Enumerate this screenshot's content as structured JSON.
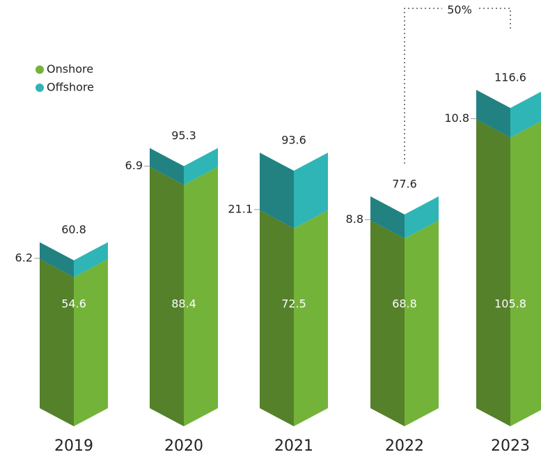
{
  "chart_data": {
    "type": "bar3d-stacked",
    "categories": [
      "2019",
      "2020",
      "2021",
      "2022",
      "2023"
    ],
    "series": [
      {
        "name": "Onshore",
        "color": "#74b33a",
        "values": [
          54.6,
          88.4,
          72.5,
          68.8,
          105.8
        ]
      },
      {
        "name": "Offshore",
        "color": "#2fb5b5",
        "values": [
          6.2,
          6.9,
          21.1,
          8.8,
          10.8
        ]
      }
    ],
    "totals": [
      60.8,
      95.3,
      93.6,
      77.6,
      116.6
    ],
    "annotation": "50%",
    "legend": "upper left"
  }
}
